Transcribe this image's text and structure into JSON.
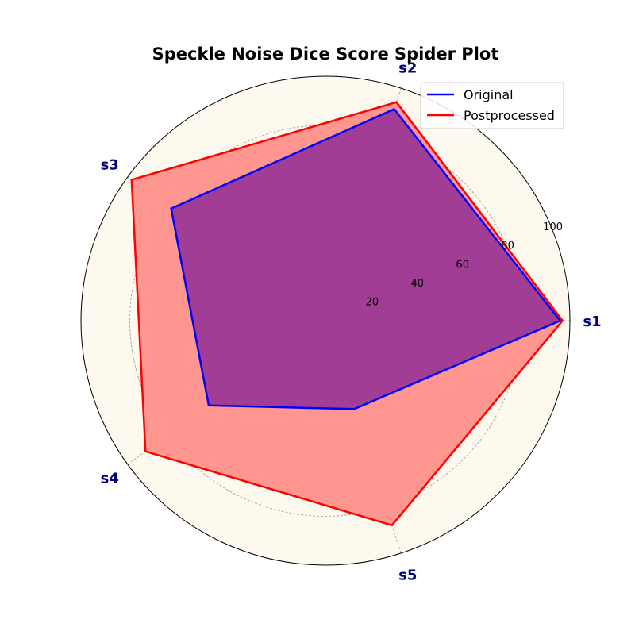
{
  "chart_data": {
    "type": "radar",
    "title": "Speckle Noise Dice Score Spider Plot",
    "categories": [
      "s1",
      "s2",
      "s3",
      "s4",
      "s5"
    ],
    "rmax": 100,
    "radial_ticks": [
      20,
      40,
      60,
      80,
      100
    ],
    "series": [
      {
        "name": "Original",
        "values": [
          96,
          91,
          78,
          59,
          38
        ]
      },
      {
        "name": "Postprocessed",
        "values": [
          97,
          94,
          98,
          91,
          88
        ]
      }
    ],
    "legend": "top-right",
    "grid": true,
    "colors": {
      "plot_background": "#fdf9ee",
      "Original": "#0000ff",
      "Postprocessed": "#ff0000",
      "Postprocessed_fill": "#ff9690",
      "overlap_fill": "#a23d95",
      "label": "#00007f",
      "grid": "#999999"
    }
  }
}
